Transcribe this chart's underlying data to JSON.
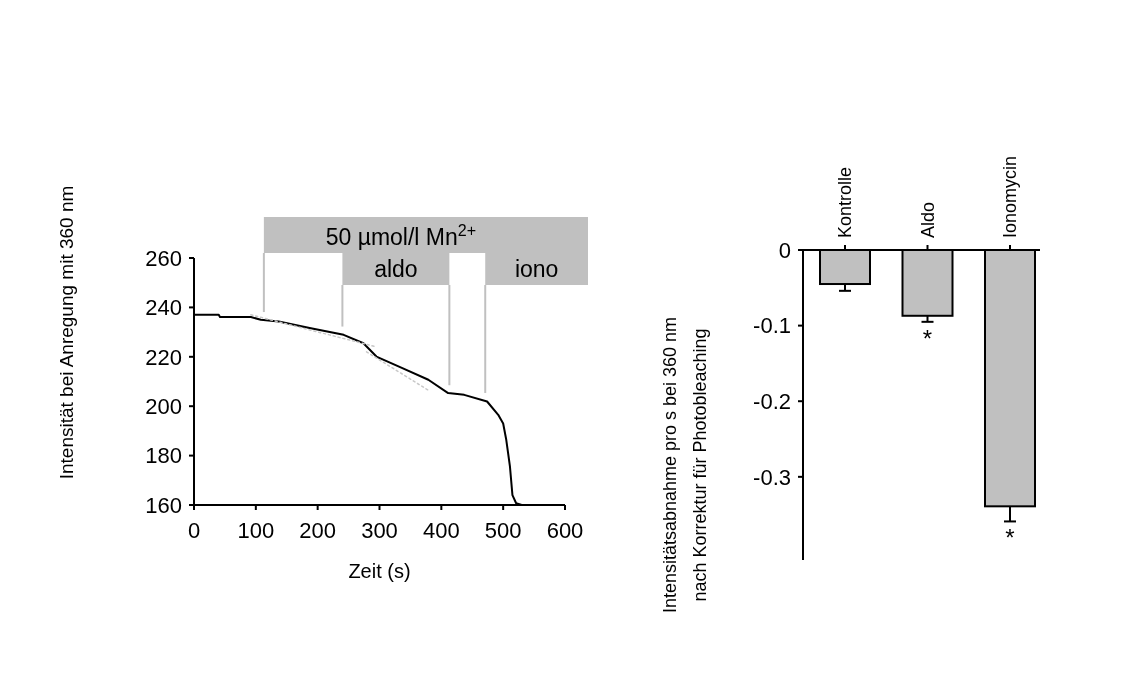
{
  "chart_data": [
    {
      "type": "line",
      "xlabel": "Zeit (s)",
      "ylabel": "Intensität bei Anregung mit 360 nm",
      "xlim": [
        0,
        600
      ],
      "ylim": [
        160,
        260
      ],
      "xticks": [
        0,
        100,
        200,
        300,
        400,
        500,
        600
      ],
      "yticks": [
        160,
        180,
        200,
        220,
        240,
        260
      ],
      "series": [
        {
          "color": "#000000",
          "line_style": "solid",
          "x": [
            0,
            5,
            40,
            42,
            92,
            108,
            137,
            189,
            242,
            274,
            295,
            337,
            379,
            411,
            437,
            474,
            492,
            500,
            505,
            511,
            515,
            521,
            530
          ],
          "values": [
            237,
            237,
            237,
            236.1,
            236.1,
            235,
            234.3,
            231.6,
            228.9,
            225.5,
            220.1,
            215.4,
            210.7,
            205.3,
            204.6,
            201.9,
            196.5,
            193,
            186.4,
            175.5,
            164,
            160.7,
            160
          ]
        },
        {
          "color": "#c8c8c8",
          "line_style": "dotted",
          "x": [
            92,
            295
          ],
          "values": [
            237,
            224
          ]
        },
        {
          "color": "#c8c8c8",
          "line_style": "dotted",
          "x": [
            279,
            382
          ],
          "values": [
            222,
            206
          ]
        }
      ],
      "ref_lines": [
        {
          "axis": "x",
          "value": 113,
          "label": "50 µmol/l Mn$^{2+}$",
          "color": "#c0c0c0"
        },
        {
          "axis": "x",
          "value": 240,
          "label": "aldo",
          "color": "#c0c0c0"
        },
        {
          "axis": "x",
          "value": 413,
          "label": null,
          "color": "#c0c0c0"
        },
        {
          "axis": "x",
          "value": 471,
          "label": "iono",
          "color": "#c0c0c0"
        }
      ]
    },
    {
      "type": "bar",
      "ylabel": "Intensitätsabnahme pro s bei 360 nm\nnach Korrektur für Photobleaching",
      "categories": [
        "Kontrolle",
        "Aldo",
        "Ionomycin"
      ],
      "values": [
        -0.045,
        -0.087,
        -0.339
      ],
      "color": "#c0c0c0",
      "errors": [
        [
          -0.054,
          -0.045
        ],
        [
          -0.095,
          -0.087
        ],
        [
          -0.359,
          -0.339
        ]
      ],
      "ylim": [
        -0.41,
        0
      ],
      "yticks": [
        {
          "value": -0.3,
          "label": "-0.3"
        },
        {
          "value": -0.2,
          "label": "-0.2"
        },
        {
          "value": -0.1,
          "label": "-0.1"
        },
        0
      ],
      "annotations": [
        {
          "text": "*",
          "x": "Aldo",
          "y": -0.095
        },
        {
          "text": "*",
          "x": "Ionomycin",
          "y": -0.359
        }
      ]
    }
  ]
}
